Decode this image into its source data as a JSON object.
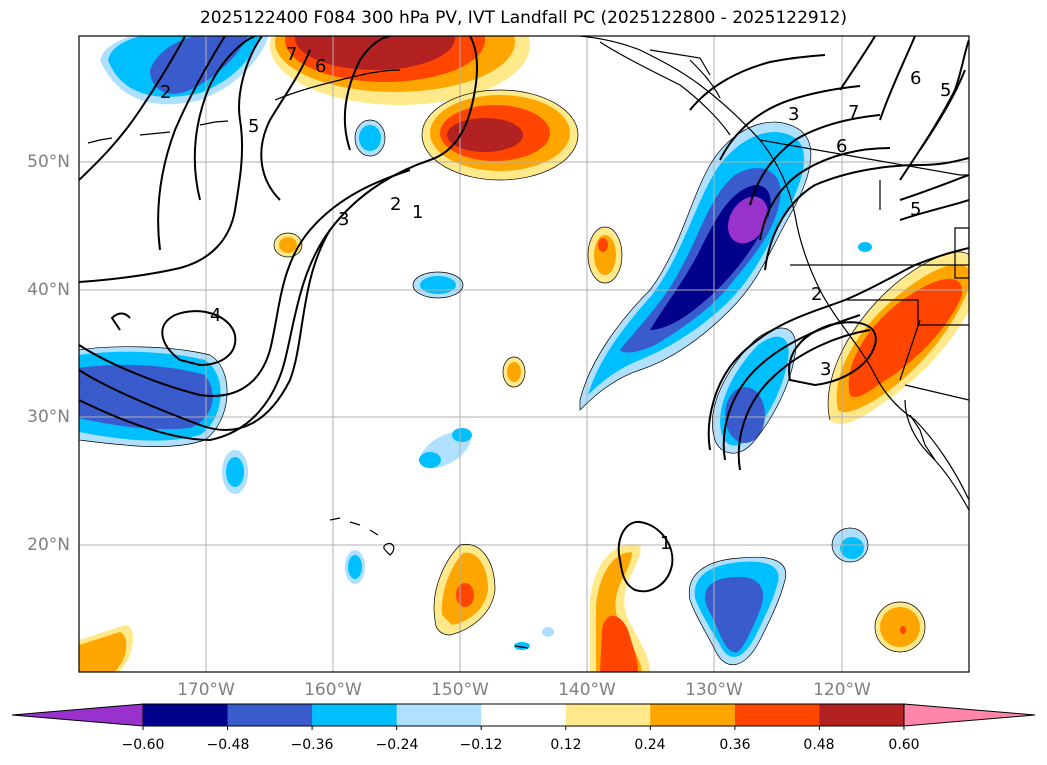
{
  "title": "2025122400 F084 300 hPa PV, IVT Landfall PC (2025122800 - 2025122912)",
  "lon_labels": [
    "170°W",
    "160°W",
    "150°W",
    "140°W",
    "130°W",
    "120°W"
  ],
  "lat_labels": [
    "50°N",
    "40°N",
    "30°N",
    "20°N"
  ],
  "colorbar": {
    "ticks": [
      "−0.60",
      "−0.48",
      "−0.36",
      "−0.24",
      "−0.12",
      "0.12",
      "0.24",
      "0.36",
      "0.48",
      "0.60"
    ],
    "colors": [
      "#9932cc",
      "#00008b",
      "#3a5bcc",
      "#00bfff",
      "#b0e0ff",
      "#ffffff",
      "#ffe98a",
      "#ffa500",
      "#ff4500",
      "#b22222",
      "#ff86a8"
    ]
  },
  "contour_labels": [
    "1",
    "2",
    "3",
    "4",
    "5",
    "6",
    "7"
  ]
}
